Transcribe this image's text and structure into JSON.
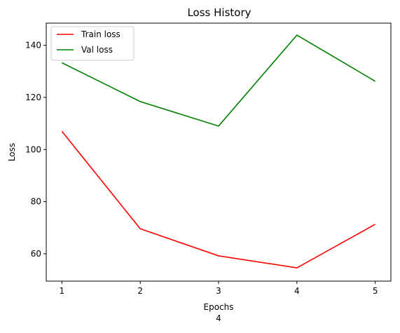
{
  "chart_data": {
    "type": "line",
    "title": "Loss History",
    "xlabel": "Epochs",
    "ylabel": "Loss",
    "caption": "4",
    "x": [
      1,
      2,
      3,
      4,
      5
    ],
    "xlim": [
      0.8,
      5.2
    ],
    "ylim": [
      49.5,
      148.5
    ],
    "xticks": [
      1,
      2,
      3,
      4,
      5
    ],
    "yticks": [
      60,
      80,
      100,
      120,
      140
    ],
    "legend_position": "upper-left",
    "grid": false,
    "series": [
      {
        "name": "Train loss",
        "color": "#ff0000",
        "values": [
          107.0,
          69.6,
          59.2,
          54.6,
          71.3
        ]
      },
      {
        "name": "Val loss",
        "color": "#008000",
        "values": [
          133.3,
          118.4,
          109.0,
          143.9,
          126.2
        ]
      }
    ]
  }
}
